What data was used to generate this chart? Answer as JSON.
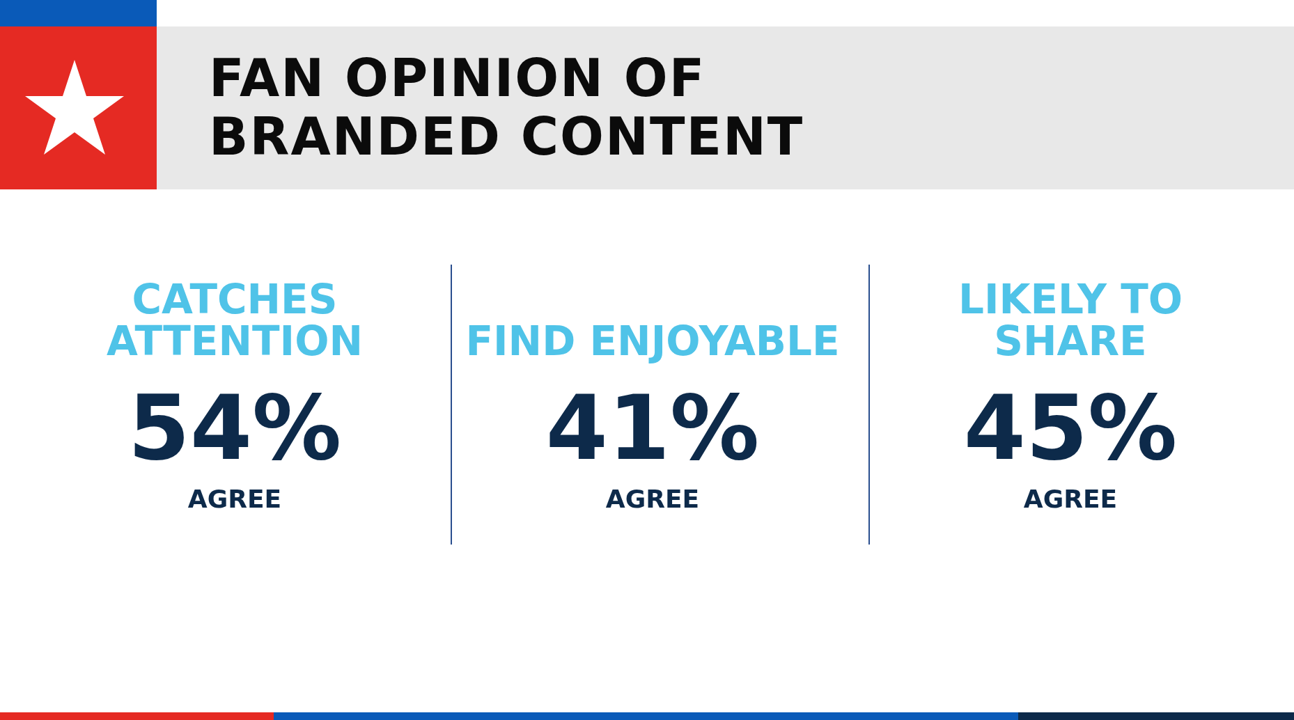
{
  "chart_data": {
    "type": "other",
    "title": "FAN OPINION OF BRANDED CONTENT",
    "categories": [
      "CATCHES ATTENTION",
      "FIND ENJOYABLE",
      "LIKELY TO SHARE"
    ],
    "values": [
      54,
      41,
      45
    ],
    "value_labels": [
      "54%",
      "41%",
      "45%"
    ],
    "annotations": [
      "AGREE",
      "AGREE",
      "AGREE"
    ]
  }
}
